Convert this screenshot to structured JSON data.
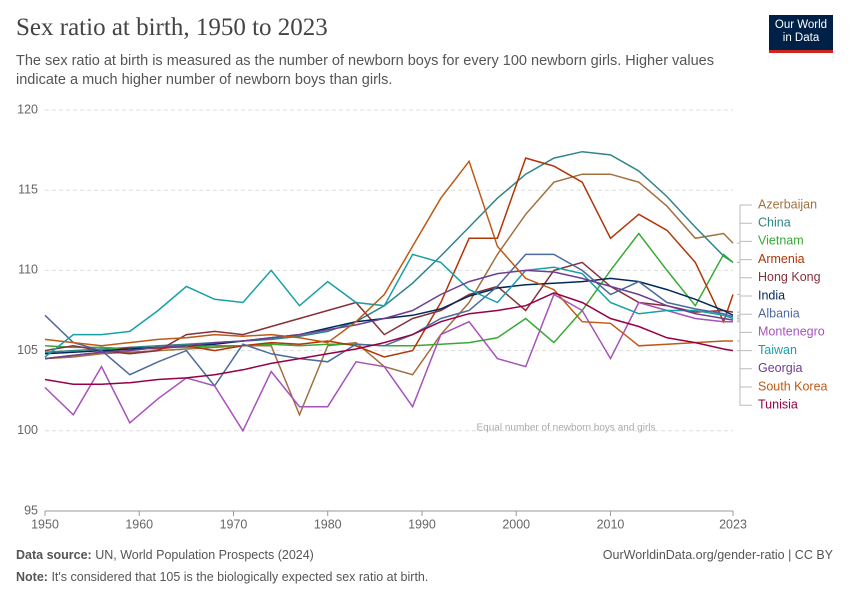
{
  "chart_data": {
    "type": "line",
    "title": "Sex ratio at birth, 1950 to 2023",
    "subtitle": "The sex ratio at birth is measured as the number of newborn boys for every 100 newborn girls. Higher values indicate a much higher number of newborn boys than girls.",
    "logo": "Our World in Data",
    "source_label": "Data source:",
    "source": "UN, World Population Prospects (2024)",
    "url": "OurWorldinData.org/gender-ratio | CC BY",
    "note_label": "Note:",
    "note": "It's considered that 105 is the biologically expected sex ratio at birth.",
    "annotation": "Equal number of newborn boys and girls",
    "xlim": [
      1950,
      2023
    ],
    "xticks": [
      1950,
      1960,
      1970,
      1980,
      1990,
      2000,
      2010,
      2023
    ],
    "ylim": [
      95,
      120
    ],
    "yticks": [
      95,
      100,
      105,
      110,
      115,
      120
    ],
    "grid": true,
    "x": [
      1950,
      1953,
      1956,
      1959,
      1962,
      1965,
      1968,
      1971,
      1974,
      1977,
      1980,
      1983,
      1986,
      1989,
      1992,
      1995,
      1998,
      2001,
      2004,
      2007,
      2010,
      2013,
      2016,
      2019,
      2022,
      2023
    ],
    "series": [
      {
        "name": "Azerbaijan",
        "color": "#a2703f",
        "values": [
          104.5,
          104.6,
          104.8,
          104.9,
          105,
          105.1,
          105.2,
          105.3,
          105.3,
          101,
          105.3,
          105.5,
          104,
          103.5,
          106,
          108,
          111,
          113.5,
          115.5,
          116,
          116,
          115.5,
          114,
          112,
          112.3,
          111.7
        ]
      },
      {
        "name": "China",
        "color": "#2d8587",
        "values": [
          104.9,
          105,
          105.1,
          105.2,
          105.3,
          105.4,
          105.5,
          105.6,
          105.7,
          105.9,
          106.2,
          106.8,
          107.8,
          109.2,
          110.9,
          112.7,
          114.5,
          116,
          117,
          117.4,
          117.2,
          116.2,
          114.6,
          112.7,
          110.9,
          110.5
        ]
      },
      {
        "name": "Vietnam",
        "color": "#38aa34",
        "values": [
          105.3,
          105.2,
          105.2,
          105.1,
          105.2,
          105.2,
          105.3,
          105.3,
          105.4,
          105.3,
          105.4,
          105.4,
          105.3,
          105.3,
          105.4,
          105.5,
          105.8,
          107,
          105.5,
          107.5,
          110,
          112.3,
          110,
          107.8,
          111,
          110.5
        ]
      },
      {
        "name": "Armenia",
        "color": "#b13507",
        "values": [
          104.5,
          104.7,
          104.9,
          105.2,
          105.1,
          105.3,
          105,
          105.3,
          105.5,
          105.4,
          105.6,
          105.3,
          104.6,
          105,
          108,
          112,
          112,
          117,
          116.5,
          115.5,
          112,
          113.5,
          112.5,
          110.5,
          106.8,
          108.5
        ]
      },
      {
        "name": "Hong Kong",
        "color": "#883039",
        "values": [
          105,
          105.3,
          105,
          104.8,
          105,
          106,
          106.2,
          106,
          106.5,
          107,
          107.5,
          108,
          106,
          107,
          107.5,
          108.5,
          109,
          107.5,
          110,
          110.5,
          109,
          108,
          107.8,
          107.4,
          107.5,
          107.4
        ]
      },
      {
        "name": "India",
        "color": "#00295b",
        "values": [
          104.8,
          104.9,
          105,
          105.1,
          105.2,
          105.3,
          105.4,
          105.6,
          105.8,
          106,
          106.4,
          106.8,
          107,
          107.2,
          107.6,
          108.4,
          108.9,
          109.1,
          109.2,
          109.3,
          109.5,
          109.3,
          108.8,
          108.2,
          107.5,
          107.2
        ]
      },
      {
        "name": "Albania",
        "color": "#4c6a9c",
        "values": [
          107.2,
          105.5,
          105,
          103.5,
          104.3,
          105,
          102.8,
          105.4,
          104.8,
          104.5,
          104.3,
          105.4,
          105.3,
          106,
          107,
          107.5,
          109,
          111,
          111,
          110,
          108.5,
          109.3,
          108,
          107.6,
          107.3,
          107.1
        ]
      },
      {
        "name": "Montenegro",
        "color": "#a652ba",
        "values": [
          102.7,
          101,
          104,
          100.5,
          102,
          103.3,
          102.8,
          100,
          103.7,
          101.5,
          101.5,
          104.3,
          104,
          101.5,
          106,
          106.8,
          104.5,
          104,
          108.5,
          107.5,
          104.5,
          108,
          107.5,
          107,
          106.8,
          106.8
        ]
      },
      {
        "name": "Taiwan",
        "color": "#18a0a7",
        "values": [
          104.6,
          106,
          106,
          106.2,
          107.5,
          109,
          108.2,
          108,
          110,
          107.8,
          109.3,
          108,
          107.8,
          111,
          110.5,
          108.8,
          108,
          110,
          110.2,
          109.8,
          108,
          107.3,
          107.5,
          107.5,
          107.2,
          107
        ]
      },
      {
        "name": "Georgia",
        "color": "#6d3e91",
        "values": [
          104.5,
          104.7,
          104.9,
          105,
          105.2,
          105.3,
          105.5,
          105.6,
          105.8,
          106,
          106.3,
          106.6,
          107,
          107.5,
          108.5,
          109.3,
          109.8,
          110,
          109.9,
          109.5,
          109,
          108.5,
          107.8,
          107.3,
          107,
          106.9
        ]
      },
      {
        "name": "South Korea",
        "color": "#be5915",
        "values": [
          105.7,
          105.5,
          105.3,
          105.5,
          105.7,
          105.8,
          106,
          105.9,
          106,
          105.8,
          105.5,
          106.8,
          108.5,
          111.5,
          114.5,
          116.8,
          111.5,
          109.5,
          108.8,
          106.8,
          106.7,
          105.3,
          105.4,
          105.5,
          105.6,
          105.6
        ]
      },
      {
        "name": "Tunisia",
        "color": "#970046",
        "values": [
          103.2,
          102.9,
          102.9,
          103,
          103.2,
          103.3,
          103.5,
          103.8,
          104.2,
          104.5,
          104.8,
          105.1,
          105.5,
          106,
          106.8,
          107.3,
          107.5,
          107.8,
          108.6,
          108,
          107,
          106.5,
          105.8,
          105.5,
          105.1,
          105
        ]
      }
    ]
  }
}
